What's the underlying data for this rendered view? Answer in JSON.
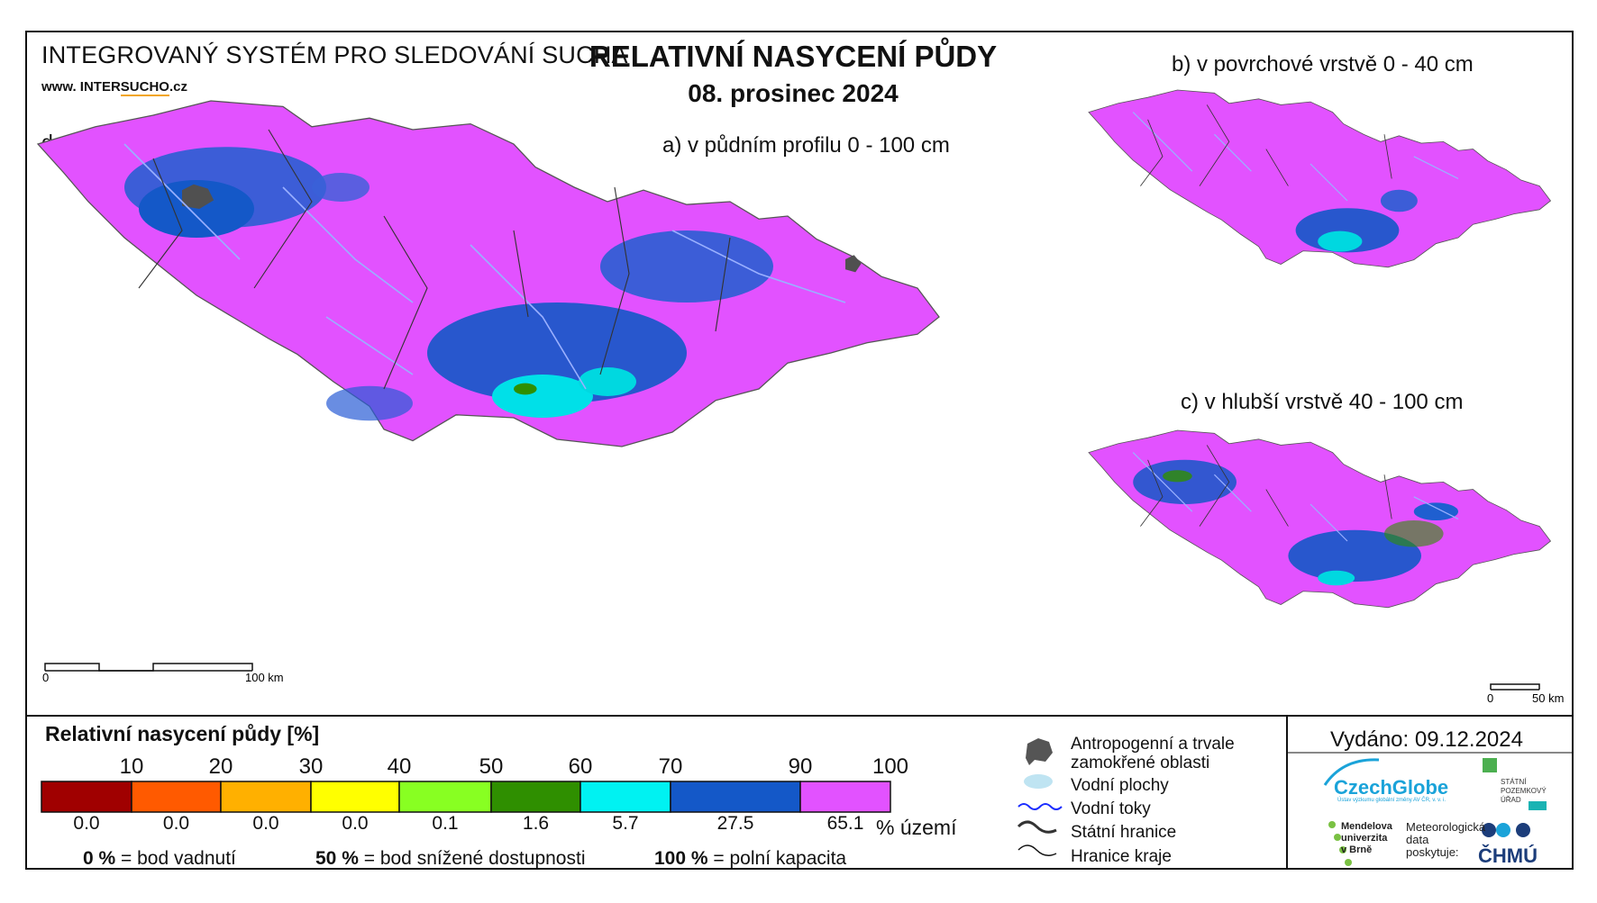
{
  "header": {
    "system_title": "INTEGROVANÝ SYSTÉM PRO SLEDOVÁNÍ SUCHA",
    "website_prefix": "www. INTER",
    "website_highlight": "SUCHO",
    "website_suffix": ".cz",
    "data_time": "data v 7:00 SEČ",
    "main_title": "RELATIVNÍ NASYCENÍ PŮDY",
    "date": "08. prosinec 2024"
  },
  "maps": {
    "a_title": "a) v půdním profilu 0 - 100 cm",
    "b_title": "b) v povrchové vrstvě 0 - 40 cm",
    "c_title": "c) v hlubší vrstvě 40 - 100 cm",
    "scale_a": {
      "start": "0",
      "end": "100 km"
    },
    "scale_bc": {
      "start": "0",
      "end": "50 km"
    }
  },
  "legend": {
    "title": "Relativní nasycení půdy [%]",
    "ticks": [
      "10",
      "20",
      "30",
      "40",
      "50",
      "60",
      "70",
      "90",
      "100"
    ],
    "classes": [
      {
        "color": "#a00000",
        "pct": "0.0"
      },
      {
        "color": "#ff5a00",
        "pct": "0.0"
      },
      {
        "color": "#ffb000",
        "pct": "0.0"
      },
      {
        "color": "#ffff00",
        "pct": "0.0"
      },
      {
        "color": "#88ff22",
        "pct": "0.1"
      },
      {
        "color": "#2f8f00",
        "pct": "1.6"
      },
      {
        "color": "#00f2f2",
        "pct": "5.7"
      },
      {
        "color": "#1458c8",
        "pct": "27.5"
      },
      {
        "color": "#e252ff",
        "pct": "65.1"
      }
    ],
    "unit": "% území",
    "notes": [
      {
        "bold": "0 %",
        "text": "= bod vadnutí"
      },
      {
        "bold": "50 %",
        "text": "= bod snížené dostupnosti"
      },
      {
        "bold": "100 %",
        "text": "= polní kapacita"
      }
    ]
  },
  "symbols": {
    "anthropogenic_line1": "Antropogenní a trvale",
    "anthropogenic_line2": "zamokřené oblasti",
    "water_bodies": "Vodní plochy",
    "water_streams": "Vodní toky",
    "state_border": "Státní hranice",
    "region_border": "Hranice kraje"
  },
  "footer": {
    "issued": "Vydáno: 09.12.2024",
    "czechglobe": "CzechGlobe",
    "czechglobe_sub": "Ústav výzkumu globální změny AV ČR, v. v. i.",
    "spu_lines": [
      "STÁTNÍ",
      "POZEMKOVÝ",
      "ÚŘAD"
    ],
    "mendel_lines": [
      "Mendelova",
      "univerzita",
      "v Brně"
    ],
    "meteo_lines": [
      "Meteorologická",
      "data",
      "poskytuje:"
    ],
    "chmu": "ČHMÚ"
  }
}
